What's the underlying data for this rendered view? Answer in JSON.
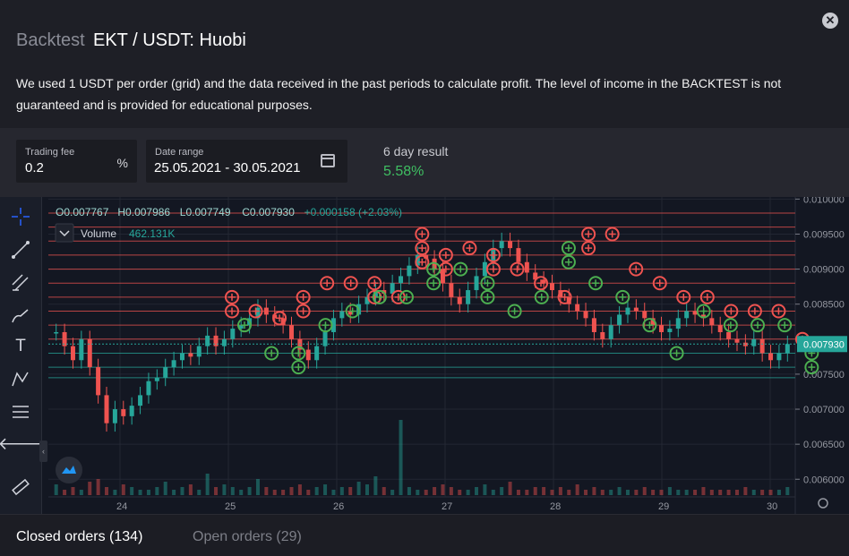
{
  "modal": {
    "title_prefix": "Backtest",
    "title_pair": "EKT / USDT: Huobi",
    "close_label": "✕",
    "description": "We used 1 USDT per order (grid) and the data received in the past periods to calculate profit. The level of income in the BACKTEST is not guaranteed and is provided for educational purposes."
  },
  "params": {
    "trading_fee_label": "Trading fee",
    "trading_fee_value": "0.2",
    "trading_fee_suffix": "%",
    "date_range_label": "Date range",
    "date_range_value": "25.05.2021 - 30.05.2021",
    "result_label": "6 day result",
    "result_value": "5.58%"
  },
  "chart_data": {
    "type": "candlestick",
    "legend_ohlc": [
      "O0.007767",
      "H0.007986",
      "L0.007749",
      "C0.007930",
      "+0.000158 (+2.03%)"
    ],
    "volume_label": "Volume",
    "volume_value": "462.131K",
    "y_ticks": [
      "0.010000",
      "0.009500",
      "0.009000",
      "0.008500",
      "0.008000",
      "0.007500",
      "0.007000",
      "0.006500",
      "0.006000"
    ],
    "y_range": [
      0.00585,
      0.01003
    ],
    "current_price": "0.007930",
    "x_ticks": [
      "24",
      "25",
      "26",
      "27",
      "28",
      "29",
      "30"
    ],
    "grid_levels": [
      0.0098,
      0.0096,
      0.0094,
      0.0092,
      0.009,
      0.0088,
      0.0086,
      0.0084,
      0.0082,
      0.008,
      0.0078,
      0.0076,
      0.00745
    ],
    "price_path": [
      0.0081,
      0.0079,
      0.0077,
      0.008,
      0.0076,
      0.0072,
      0.0068,
      0.007,
      0.0069,
      0.00705,
      0.0072,
      0.0074,
      0.00745,
      0.0076,
      0.0077,
      0.0078,
      0.00775,
      0.0079,
      0.00805,
      0.0079,
      0.008,
      0.00815,
      0.0082,
      0.0083,
      0.00845,
      0.00835,
      0.0083,
      0.0082,
      0.008,
      0.00785,
      0.0077,
      0.0079,
      0.0081,
      0.0083,
      0.0084,
      0.00835,
      0.0085,
      0.0086,
      0.0087,
      0.00865,
      0.0088,
      0.0089,
      0.00905,
      0.0092,
      0.00915,
      0.009,
      0.0088,
      0.0086,
      0.0085,
      0.0087,
      0.0089,
      0.0091,
      0.0093,
      0.0094,
      0.0093,
      0.0091,
      0.00895,
      0.00885,
      0.0088,
      0.0087,
      0.0086,
      0.0085,
      0.0084,
      0.0083,
      0.0081,
      0.008,
      0.0082,
      0.00835,
      0.00845,
      0.0084,
      0.0083,
      0.0082,
      0.0081,
      0.00815,
      0.0083,
      0.0084,
      0.00835,
      0.0083,
      0.0082,
      0.0081,
      0.008,
      0.00795,
      0.0079,
      0.008,
      0.0078,
      0.0077,
      0.0078,
      0.00793
    ],
    "volumes": [
      4,
      2,
      3,
      2,
      5,
      6,
      3,
      2,
      4,
      3,
      2,
      2,
      3,
      5,
      2,
      3,
      4,
      2,
      8,
      3,
      4,
      3,
      2,
      3,
      6,
      3,
      2,
      2,
      3,
      4,
      2,
      3,
      4,
      2,
      3,
      3,
      5,
      4,
      7,
      3,
      2,
      28,
      3,
      2,
      2,
      3,
      4,
      3,
      2,
      2,
      3,
      4,
      2,
      3,
      5,
      2,
      2,
      3,
      3,
      2,
      3,
      2,
      4,
      2,
      3,
      2,
      2,
      3,
      2,
      2,
      3,
      2,
      2,
      3,
      2,
      2,
      2,
      3,
      2,
      2,
      2,
      2,
      3,
      2,
      2,
      2,
      2,
      3
    ],
    "sell_markers": [
      [
        0.0086,
        0.0084
      ],
      [
        0.0084
      ],
      [
        0.0083
      ],
      [
        0.0086,
        0.0084
      ],
      [
        0.0088
      ],
      [
        0.0088
      ],
      [
        0.0088,
        0.0086
      ],
      [
        0.0086
      ],
      [
        0.0095,
        0.0093,
        0.0091
      ],
      [
        0.0092,
        0.009
      ],
      [
        0.0093
      ],
      [
        0.0092,
        0.009
      ],
      [
        0.009
      ],
      [
        0.0088
      ],
      [
        0.0086
      ],
      [
        0.0095,
        0.0093
      ],
      [
        0.0095
      ],
      [
        0.009
      ],
      [
        0.0088
      ],
      [
        0.0086
      ],
      [
        0.0086
      ],
      [
        0.0084
      ],
      [
        0.0084
      ],
      [
        0.0084
      ],
      [
        0.008
      ]
    ],
    "buy_markers": [
      [
        0.0082
      ],
      [
        0.0078
      ],
      [
        0.0076,
        0.0078
      ],
      [
        0.0082
      ],
      [
        0.0084
      ],
      [
        0.0086
      ],
      [
        0.0086
      ],
      [
        0.0088,
        0.009
      ],
      [
        0.009
      ],
      [
        0.0088,
        0.0086
      ],
      [
        0.0084
      ],
      [
        0.0086
      ],
      [
        0.0093,
        0.0091
      ],
      [
        0.0088
      ],
      [
        0.0086
      ],
      [
        0.0082
      ],
      [
        0.0078
      ],
      [
        0.0084
      ],
      [
        0.0082
      ],
      [
        0.0082
      ],
      [
        0.0082
      ],
      [
        0.0078,
        0.0076
      ]
    ]
  },
  "tabs": {
    "closed_orders": "Closed orders (134)",
    "open_orders": "Open orders (29)"
  },
  "toolbar": {
    "text_tool_glyph": "T",
    "back_glyph": "🡐"
  },
  "colors": {
    "sell": "#ef5350",
    "buy": "#26a69a",
    "marker_buy": "#4caf50",
    "price_tag": "#26a69a"
  }
}
